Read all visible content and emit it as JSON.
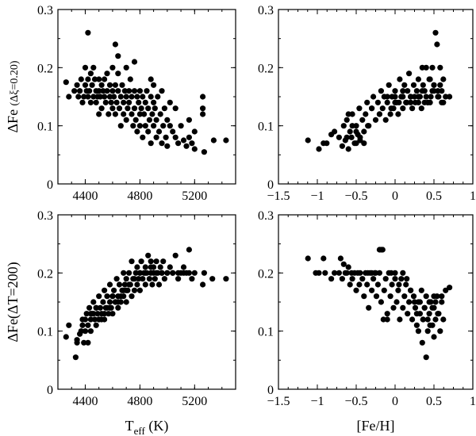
{
  "chart_data": [
    {
      "type": "scatter",
      "panel": "top-left",
      "ylabel": "ΔFe (Δξ=0.20)",
      "xlabel": "",
      "xlim": [
        4200,
        5500
      ],
      "ylim": [
        0,
        0.3
      ],
      "xticks": [
        4400,
        4800,
        5200
      ],
      "xtick_labels": [
        "4400",
        "4800",
        "5200"
      ],
      "yticks": [
        0,
        0.1,
        0.2,
        0.3
      ],
      "ytick_labels": [
        "0",
        "0.1",
        "0.2",
        "0.3"
      ],
      "x": [
        4260,
        4280,
        4320,
        4340,
        4350,
        4360,
        4370,
        4380,
        4390,
        4400,
        4400,
        4410,
        4420,
        4420,
        4430,
        4440,
        4440,
        4450,
        4460,
        4460,
        4470,
        4480,
        4480,
        4490,
        4500,
        4500,
        4500,
        4510,
        4520,
        4520,
        4530,
        4540,
        4540,
        4550,
        4560,
        4560,
        4570,
        4580,
        4580,
        4590,
        4600,
        4600,
        4600,
        4610,
        4620,
        4620,
        4630,
        4640,
        4640,
        4650,
        4660,
        4660,
        4670,
        4680,
        4680,
        4690,
        4700,
        4700,
        4700,
        4710,
        4720,
        4720,
        4730,
        4740,
        4740,
        4750,
        4760,
        4760,
        4770,
        4780,
        4780,
        4790,
        4800,
        4800,
        4800,
        4810,
        4820,
        4820,
        4830,
        4840,
        4840,
        4850,
        4860,
        4860,
        4870,
        4880,
        4880,
        4890,
        4900,
        4900,
        4910,
        4920,
        4920,
        4930,
        4940,
        4950,
        4960,
        4970,
        4980,
        4990,
        5000,
        5000,
        5020,
        5040,
        5060,
        5080,
        5100,
        5120,
        5140,
        5160,
        5180,
        5200,
        5260,
        5260,
        5270,
        5340,
        5430,
        4420,
        4620,
        4640,
        4760,
        4880,
        4900,
        4960,
        5020,
        5060,
        5160,
        5200,
        5260
      ],
      "y": [
        0.175,
        0.15,
        0.16,
        0.17,
        0.15,
        0.16,
        0.18,
        0.14,
        0.15,
        0.17,
        0.2,
        0.16,
        0.15,
        0.18,
        0.16,
        0.19,
        0.14,
        0.17,
        0.2,
        0.15,
        0.18,
        0.16,
        0.14,
        0.15,
        0.18,
        0.16,
        0.12,
        0.15,
        0.17,
        0.13,
        0.16,
        0.18,
        0.15,
        0.14,
        0.19,
        0.16,
        0.12,
        0.17,
        0.15,
        0.14,
        0.16,
        0.13,
        0.2,
        0.15,
        0.17,
        0.12,
        0.14,
        0.16,
        0.19,
        0.13,
        0.15,
        0.1,
        0.17,
        0.14,
        0.12,
        0.16,
        0.15,
        0.11,
        0.2,
        0.13,
        0.16,
        0.14,
        0.18,
        0.12,
        0.15,
        0.1,
        0.16,
        0.13,
        0.11,
        0.15,
        0.09,
        0.14,
        0.12,
        0.16,
        0.1,
        0.13,
        0.15,
        0.08,
        0.12,
        0.14,
        0.1,
        0.16,
        0.13,
        0.09,
        0.11,
        0.15,
        0.07,
        0.12,
        0.14,
        0.1,
        0.13,
        0.08,
        0.11,
        0.15,
        0.09,
        0.12,
        0.07,
        0.1,
        0.13,
        0.08,
        0.11,
        0.065,
        0.1,
        0.09,
        0.08,
        0.07,
        0.1,
        0.075,
        0.065,
        0.08,
        0.07,
        0.06,
        0.15,
        0.12,
        0.055,
        0.075,
        0.075,
        0.26,
        0.24,
        0.22,
        0.21,
        0.18,
        0.17,
        0.16,
        0.14,
        0.13,
        0.11,
        0.09,
        0.13
      ]
    },
    {
      "type": "scatter",
      "panel": "top-right",
      "ylabel": "",
      "xlabel": "",
      "xlim": [
        -1.5,
        1
      ],
      "ylim": [
        0,
        0.3
      ],
      "xticks": [
        -1.5,
        -1,
        -0.5,
        0,
        0.5,
        1
      ],
      "xtick_labels": [
        "−1.5",
        "−1",
        "−0.5",
        "0",
        "0.5",
        "1"
      ],
      "yticks": [
        0,
        0.1,
        0.2,
        0.3
      ],
      "ytick_labels": [
        "0",
        "0.1",
        "0.2",
        "0.3"
      ],
      "x": [
        -1.12,
        -0.98,
        -0.92,
        -0.88,
        -0.82,
        -0.78,
        -0.72,
        -0.68,
        -0.66,
        -0.64,
        -0.62,
        -0.6,
        -0.58,
        -0.56,
        -0.55,
        -0.52,
        -0.5,
        -0.48,
        -0.46,
        -0.45,
        -0.42,
        -0.4,
        -0.38,
        -0.36,
        -0.34,
        -0.3,
        -0.28,
        -0.25,
        -0.22,
        -0.2,
        -0.18,
        -0.16,
        -0.14,
        -0.12,
        -0.1,
        -0.08,
        -0.06,
        -0.04,
        -0.02,
        0,
        0.02,
        0.04,
        0.06,
        0.08,
        0.1,
        0.12,
        0.14,
        0.16,
        0.18,
        0.2,
        0.22,
        0.24,
        0.26,
        0.28,
        0.3,
        0.32,
        0.34,
        0.36,
        0.38,
        0.4,
        0.42,
        0.44,
        0.46,
        0.48,
        0.5,
        0.52,
        0.54,
        0.56,
        0.58,
        0.6,
        0.62,
        0.65,
        0.7,
        -0.6,
        -0.55,
        -0.5,
        -0.45,
        -0.4,
        -0.35,
        -0.2,
        -0.1,
        0,
        0.1,
        0.2,
        0.3,
        0.35,
        0.4,
        0.45,
        0.5,
        0.55,
        0.6,
        0.25,
        0.15,
        0.05,
        -0.05,
        0.45,
        0.35,
        0.5,
        0.55,
        0.42,
        0.3,
        0.2,
        0.1,
        -0.3,
        -0.62,
        -0.5,
        0.0,
        0.58,
        0.62,
        0.38,
        0.48
      ],
      "y": [
        0.075,
        0.06,
        0.07,
        0.07,
        0.085,
        0.09,
        0.08,
        0.065,
        0.1,
        0.075,
        0.11,
        0.06,
        0.09,
        0.08,
        0.12,
        0.07,
        0.1,
        0.085,
        0.13,
        0.075,
        0.11,
        0.09,
        0.12,
        0.14,
        0.1,
        0.13,
        0.15,
        0.11,
        0.14,
        0.12,
        0.16,
        0.13,
        0.15,
        0.11,
        0.14,
        0.17,
        0.12,
        0.15,
        0.13,
        0.16,
        0.14,
        0.12,
        0.18,
        0.15,
        0.13,
        0.17,
        0.14,
        0.16,
        0.19,
        0.15,
        0.13,
        0.17,
        0.14,
        0.16,
        0.18,
        0.15,
        0.13,
        0.17,
        0.16,
        0.2,
        0.14,
        0.18,
        0.15,
        0.16,
        0.17,
        0.26,
        0.24,
        0.15,
        0.2,
        0.16,
        0.18,
        0.15,
        0.15,
        0.12,
        0.1,
        0.09,
        0.08,
        0.07,
        0.1,
        0.12,
        0.15,
        0.14,
        0.16,
        0.15,
        0.14,
        0.16,
        0.15,
        0.14,
        0.17,
        0.16,
        0.14,
        0.15,
        0.14,
        0.14,
        0.13,
        0.18,
        0.2,
        0.16,
        0.15,
        0.14,
        0.15,
        0.14,
        0.15,
        0.13,
        0.08,
        0.07,
        0.15,
        0.17,
        0.14,
        0.14,
        0.2
      ]
    },
    {
      "type": "scatter",
      "panel": "bottom-left",
      "ylabel": "ΔFe(ΔT=200)",
      "xlabel": "Teff (K)",
      "xlim": [
        4200,
        5500
      ],
      "ylim": [
        0,
        0.3
      ],
      "xticks": [
        4400,
        4800,
        5200
      ],
      "xtick_labels": [
        "4400",
        "4800",
        "5200"
      ],
      "yticks": [
        0,
        0.1,
        0.2,
        0.3
      ],
      "ytick_labels": [
        "0",
        "0.1",
        "0.2",
        "0.3"
      ],
      "x": [
        4260,
        4280,
        4330,
        4340,
        4360,
        4370,
        4380,
        4390,
        4400,
        4400,
        4410,
        4420,
        4430,
        4440,
        4440,
        4450,
        4460,
        4470,
        4480,
        4480,
        4490,
        4500,
        4500,
        4510,
        4520,
        4530,
        4540,
        4540,
        4550,
        4560,
        4570,
        4580,
        4580,
        4590,
        4600,
        4600,
        4610,
        4620,
        4630,
        4640,
        4640,
        4650,
        4660,
        4670,
        4680,
        4680,
        4690,
        4700,
        4700,
        4710,
        4720,
        4730,
        4740,
        4740,
        4750,
        4760,
        4770,
        4780,
        4780,
        4790,
        4800,
        4800,
        4810,
        4820,
        4830,
        4840,
        4840,
        4850,
        4860,
        4870,
        4880,
        4880,
        4890,
        4900,
        4900,
        4910,
        4920,
        4930,
        4940,
        4950,
        4960,
        4970,
        4980,
        5000,
        5020,
        5040,
        5060,
        5080,
        5100,
        5120,
        5140,
        5160,
        5180,
        5200,
        5260,
        5270,
        5330,
        5430,
        4420,
        4460,
        4520,
        4560,
        4600,
        4640,
        4680,
        4720,
        4760,
        4800,
        4840,
        4880,
        4920,
        4960,
        5000,
        5040,
        5080,
        5120,
        5160,
        4340,
        4380,
        4440,
        4480,
        4500,
        4540,
        4580,
        4620,
        4660,
        4700
      ],
      "y": [
        0.09,
        0.11,
        0.055,
        0.085,
        0.095,
        0.1,
        0.11,
        0.08,
        0.12,
        0.1,
        0.13,
        0.11,
        0.14,
        0.12,
        0.1,
        0.13,
        0.15,
        0.12,
        0.14,
        0.11,
        0.13,
        0.16,
        0.12,
        0.14,
        0.13,
        0.15,
        0.17,
        0.12,
        0.14,
        0.16,
        0.13,
        0.15,
        0.18,
        0.14,
        0.16,
        0.13,
        0.17,
        0.15,
        0.19,
        0.14,
        0.16,
        0.18,
        0.15,
        0.17,
        0.2,
        0.16,
        0.18,
        0.15,
        0.19,
        0.17,
        0.2,
        0.18,
        0.16,
        0.22,
        0.19,
        0.17,
        0.2,
        0.18,
        0.21,
        0.19,
        0.2,
        0.17,
        0.22,
        0.19,
        0.2,
        0.18,
        0.21,
        0.2,
        0.23,
        0.19,
        0.2,
        0.22,
        0.18,
        0.21,
        0.2,
        0.19,
        0.22,
        0.2,
        0.18,
        0.21,
        0.2,
        0.22,
        0.19,
        0.2,
        0.21,
        0.2,
        0.23,
        0.19,
        0.2,
        0.21,
        0.2,
        0.24,
        0.19,
        0.2,
        0.18,
        0.2,
        0.19,
        0.19,
        0.08,
        0.13,
        0.12,
        0.14,
        0.16,
        0.15,
        0.17,
        0.18,
        0.19,
        0.2,
        0.2,
        0.21,
        0.2,
        0.2,
        0.2,
        0.2,
        0.2,
        0.2,
        0.2,
        0.08,
        0.12,
        0.13,
        0.14,
        0.12,
        0.13,
        0.14,
        0.15,
        0.16,
        0.17
      ]
    },
    {
      "type": "scatter",
      "panel": "bottom-right",
      "ylabel": "",
      "xlabel": "[Fe/H]",
      "xlim": [
        -1.5,
        1
      ],
      "ylim": [
        0,
        0.3
      ],
      "xticks": [
        -1.5,
        -1,
        -0.5,
        0,
        0.5,
        1
      ],
      "xtick_labels": [
        "−1.5",
        "−1",
        "−0.5",
        "0",
        "0.5",
        "1"
      ],
      "yticks": [
        0,
        0.1,
        0.2,
        0.3
      ],
      "ytick_labels": [
        "0",
        "0.1",
        "0.2",
        "0.3"
      ],
      "x": [
        -1.12,
        -1.02,
        -0.98,
        -0.92,
        -0.9,
        -0.82,
        -0.78,
        -0.72,
        -0.7,
        -0.68,
        -0.66,
        -0.64,
        -0.62,
        -0.6,
        -0.58,
        -0.56,
        -0.55,
        -0.52,
        -0.5,
        -0.48,
        -0.46,
        -0.45,
        -0.42,
        -0.4,
        -0.38,
        -0.36,
        -0.34,
        -0.32,
        -0.3,
        -0.28,
        -0.26,
        -0.24,
        -0.22,
        -0.2,
        -0.18,
        -0.16,
        -0.14,
        -0.12,
        -0.1,
        -0.08,
        -0.06,
        -0.04,
        -0.02,
        0,
        0.02,
        0.04,
        0.06,
        0.08,
        0.1,
        0.12,
        0.14,
        0.16,
        0.18,
        0.2,
        0.22,
        0.24,
        0.26,
        0.28,
        0.3,
        0.32,
        0.34,
        0.36,
        0.38,
        0.4,
        0.42,
        0.44,
        0.46,
        0.48,
        0.5,
        0.52,
        0.54,
        0.56,
        0.58,
        0.6,
        0.62,
        0.65,
        0.7,
        -0.2,
        -0.18,
        -0.15,
        -0.1,
        0.35,
        0.4,
        0.45,
        0.5,
        0.3,
        0.25,
        0.2,
        0.15,
        0.1,
        0.05,
        0.38,
        0.42,
        0.48,
        0.52,
        0.55,
        0.6,
        0.28,
        0.32,
        0.36,
        -0.3,
        -0.35,
        -0.25,
        0.0,
        -0.05,
        0.44,
        0.5
      ],
      "y": [
        0.225,
        0.2,
        0.2,
        0.225,
        0.2,
        0.19,
        0.2,
        0.2,
        0.225,
        0.19,
        0.215,
        0.2,
        0.2,
        0.21,
        0.18,
        0.2,
        0.19,
        0.2,
        0.17,
        0.2,
        0.18,
        0.2,
        0.19,
        0.16,
        0.2,
        0.18,
        0.14,
        0.2,
        0.17,
        0.19,
        0.2,
        0.16,
        0.18,
        0.2,
        0.15,
        0.24,
        0.17,
        0.19,
        0.13,
        0.2,
        0.16,
        0.18,
        0.14,
        0.2,
        0.15,
        0.17,
        0.12,
        0.19,
        0.14,
        0.16,
        0.18,
        0.13,
        0.15,
        0.17,
        0.12,
        0.16,
        0.14,
        0.11,
        0.15,
        0.13,
        0.17,
        0.12,
        0.14,
        0.16,
        0.1,
        0.13,
        0.15,
        0.11,
        0.14,
        0.12,
        0.16,
        0.13,
        0.1,
        0.15,
        0.12,
        0.17,
        0.175,
        0.24,
        0.24,
        0.12,
        0.12,
        0.08,
        0.055,
        0.11,
        0.09,
        0.1,
        0.15,
        0.17,
        0.19,
        0.2,
        0.18,
        0.14,
        0.12,
        0.14,
        0.15,
        0.13,
        0.16,
        0.13,
        0.15,
        0.12,
        0.2,
        0.2,
        0.2,
        0.19,
        0.2,
        0.15,
        0.16
      ]
    }
  ]
}
